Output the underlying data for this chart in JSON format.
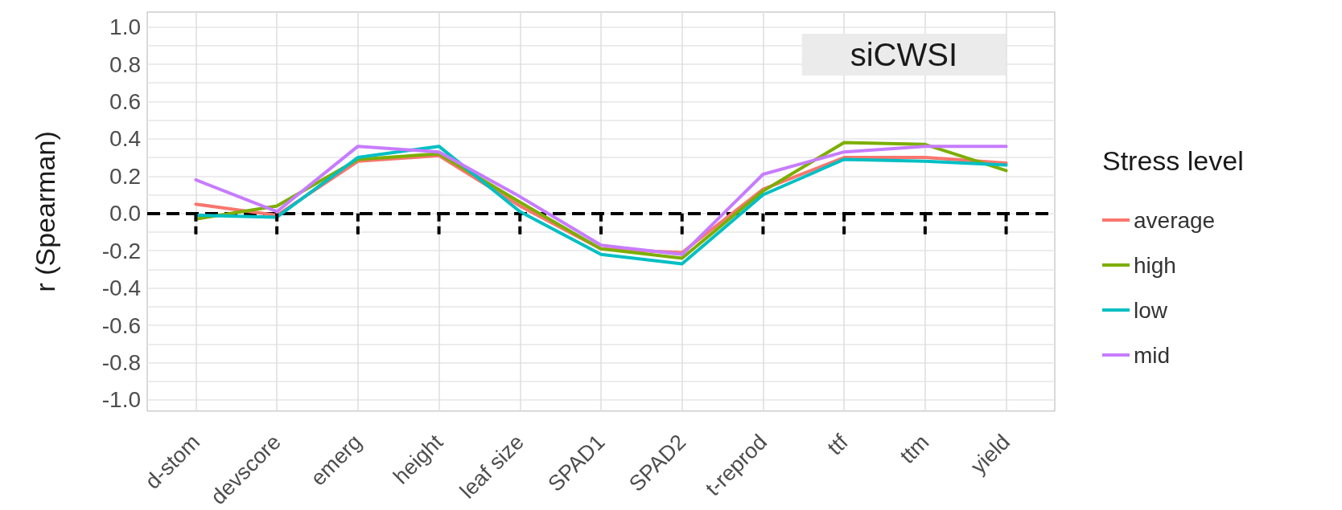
{
  "chart_data": {
    "type": "line",
    "title": "siCWSI",
    "ylabel": "r (Spearman)",
    "legend_title": "Stress level",
    "categories": [
      "d-stom",
      "devscore",
      "emerg",
      "height",
      "leaf size",
      "SPAD1",
      "SPAD2",
      "t-reprod",
      "ttf",
      "ttm",
      "yield"
    ],
    "series": [
      {
        "name": "average",
        "color": "#f8766d",
        "values": [
          0.05,
          -0.01,
          0.28,
          0.31,
          0.04,
          -0.19,
          -0.21,
          0.13,
          0.3,
          0.3,
          0.27
        ]
      },
      {
        "name": "high",
        "color": "#7cae00",
        "values": [
          -0.03,
          0.04,
          0.29,
          0.32,
          0.06,
          -0.19,
          -0.24,
          0.12,
          0.38,
          0.37,
          0.23
        ]
      },
      {
        "name": "low",
        "color": "#00bfc4",
        "values": [
          -0.01,
          -0.02,
          0.3,
          0.36,
          0.01,
          -0.22,
          -0.27,
          0.1,
          0.29,
          0.28,
          0.26
        ]
      },
      {
        "name": "mid",
        "color": "#c77cff",
        "values": [
          0.18,
          0.01,
          0.36,
          0.33,
          0.09,
          -0.17,
          -0.22,
          0.21,
          0.33,
          0.36,
          0.36
        ]
      }
    ],
    "ylim": [
      -1.06,
      1.08
    ],
    "yticks": [
      {
        "value": -1,
        "label": "-1.0"
      },
      {
        "value": -0.9,
        "label": null
      },
      {
        "value": -0.8,
        "label": "-0.8"
      },
      {
        "value": -0.7,
        "label": null
      },
      {
        "value": -0.6,
        "label": "-0.6"
      },
      {
        "value": -0.5,
        "label": null
      },
      {
        "value": -0.4,
        "label": "-0.4"
      },
      {
        "value": -0.3,
        "label": null
      },
      {
        "value": -0.2,
        "label": "-0.2"
      },
      {
        "value": -0.1,
        "label": null
      },
      {
        "value": 0,
        "label": "0.0"
      },
      {
        "value": 0.1,
        "label": null
      },
      {
        "value": 0.2,
        "label": "0.2"
      },
      {
        "value": 0.3,
        "label": null
      },
      {
        "value": 0.4,
        "label": "0.4"
      },
      {
        "value": 0.5,
        "label": null
      },
      {
        "value": 0.6,
        "label": "0.6"
      },
      {
        "value": 0.7,
        "label": null
      },
      {
        "value": 0.8,
        "label": "0.8"
      },
      {
        "value": 0.9,
        "label": null
      },
      {
        "value": 1,
        "label": "1.0"
      }
    ],
    "ref_lines": [
      {
        "axis": "y",
        "value": 0,
        "label": null,
        "color": "#000000",
        "line_style": "dashed"
      }
    ],
    "grid": true,
    "legend": "right",
    "marker": "none",
    "line_style": "solid"
  }
}
